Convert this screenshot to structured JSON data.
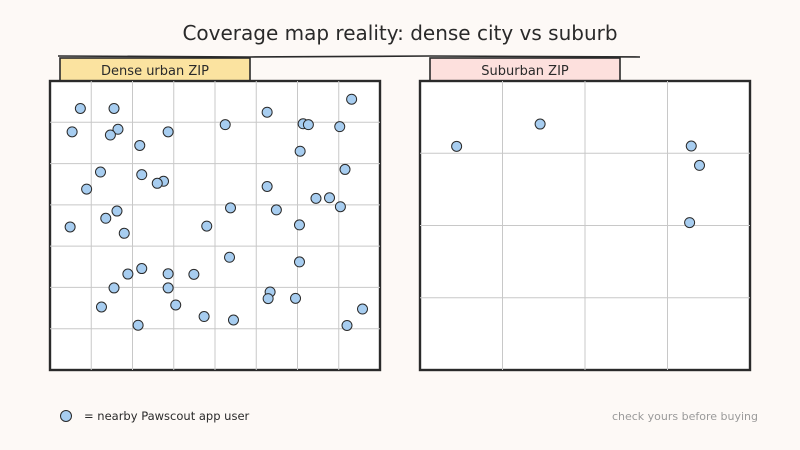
{
  "title": "Coverage map reality: dense city vs suburb",
  "panels": [
    {
      "label": "Dense urban ZIP",
      "tab_color": "#fbe3a0",
      "points": [
        [
          0.092,
          0.095
        ],
        [
          0.194,
          0.095
        ],
        [
          0.658,
          0.108
        ],
        [
          0.914,
          0.063
        ],
        [
          0.067,
          0.176
        ],
        [
          0.206,
          0.167
        ],
        [
          0.358,
          0.176
        ],
        [
          0.531,
          0.151
        ],
        [
          0.767,
          0.148
        ],
        [
          0.783,
          0.151
        ],
        [
          0.878,
          0.158
        ],
        [
          0.183,
          0.187
        ],
        [
          0.272,
          0.223
        ],
        [
          0.758,
          0.243
        ],
        [
          0.894,
          0.306
        ],
        [
          0.153,
          0.315
        ],
        [
          0.278,
          0.324
        ],
        [
          0.344,
          0.347
        ],
        [
          0.325,
          0.354
        ],
        [
          0.111,
          0.374
        ],
        [
          0.658,
          0.365
        ],
        [
          0.806,
          0.406
        ],
        [
          0.847,
          0.404
        ],
        [
          0.88,
          0.435
        ],
        [
          0.547,
          0.439
        ],
        [
          0.686,
          0.446
        ],
        [
          0.203,
          0.45
        ],
        [
          0.169,
          0.475
        ],
        [
          0.061,
          0.505
        ],
        [
          0.475,
          0.502
        ],
        [
          0.756,
          0.498
        ],
        [
          0.225,
          0.527
        ],
        [
          0.544,
          0.61
        ],
        [
          0.756,
          0.626
        ],
        [
          0.278,
          0.649
        ],
        [
          0.236,
          0.668
        ],
        [
          0.358,
          0.667
        ],
        [
          0.436,
          0.669
        ],
        [
          0.194,
          0.716
        ],
        [
          0.358,
          0.716
        ],
        [
          0.667,
          0.73
        ],
        [
          0.156,
          0.782
        ],
        [
          0.381,
          0.775
        ],
        [
          0.661,
          0.753
        ],
        [
          0.744,
          0.752
        ],
        [
          0.947,
          0.789
        ],
        [
          0.467,
          0.815
        ],
        [
          0.267,
          0.845
        ],
        [
          0.556,
          0.827
        ],
        [
          0.9,
          0.846
        ]
      ]
    },
    {
      "label": "Suburban ZIP",
      "tab_color": "#fde0dd",
      "points": [
        [
          0.111,
          0.226
        ],
        [
          0.364,
          0.149
        ],
        [
          0.822,
          0.225
        ],
        [
          0.847,
          0.292
        ],
        [
          0.817,
          0.49
        ]
      ]
    }
  ],
  "legend": {
    "label": "= nearby Pawscout app user"
  },
  "footnote": "check yours before buying",
  "colors": {
    "dot_fill": "#a7cdf0",
    "ink": "#2a2a2a",
    "grid": "#c8c8c8",
    "footnote": "#9a9a9a"
  }
}
